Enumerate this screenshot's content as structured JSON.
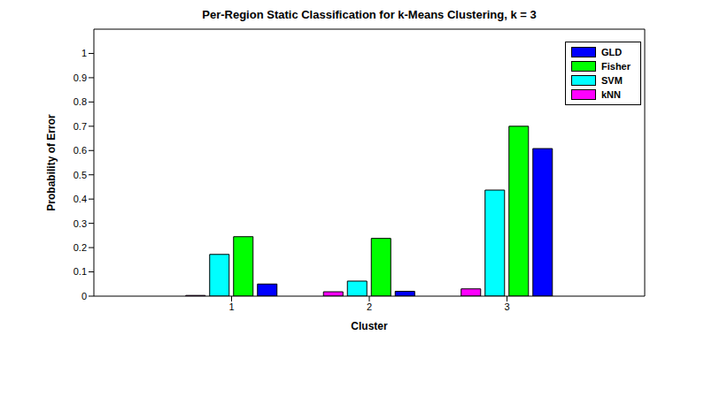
{
  "chart_data": {
    "type": "bar",
    "title": "Per-Region Static Classification for k-Means Clustering, k = 3",
    "x_label": "Cluster",
    "y_label": "Probability of Error",
    "x": [
      1,
      2,
      3
    ],
    "xlim": [
      0,
      4
    ],
    "xticks": [
      1,
      2,
      3
    ],
    "ylim": [
      0,
      1.1
    ],
    "yticks": [
      0,
      0.1,
      0.2,
      0.3,
      0.4,
      0.5,
      0.6,
      0.7,
      0.8,
      0.9,
      1
    ],
    "grid": false,
    "legend": "upper right",
    "series": [
      {
        "name": "GLD",
        "color": "#0000ff",
        "values": [
          0.05,
          0.02,
          0.608
        ]
      },
      {
        "name": "Fisher",
        "color": "#00ff00",
        "values": [
          0.245,
          0.238,
          0.7
        ]
      },
      {
        "name": "SVM",
        "color": "#00ffff",
        "values": [
          0.172,
          0.062,
          0.437
        ]
      },
      {
        "name": "kNN",
        "color": "#ff00ff",
        "values": [
          0.003,
          0.018,
          0.03
        ]
      }
    ]
  }
}
